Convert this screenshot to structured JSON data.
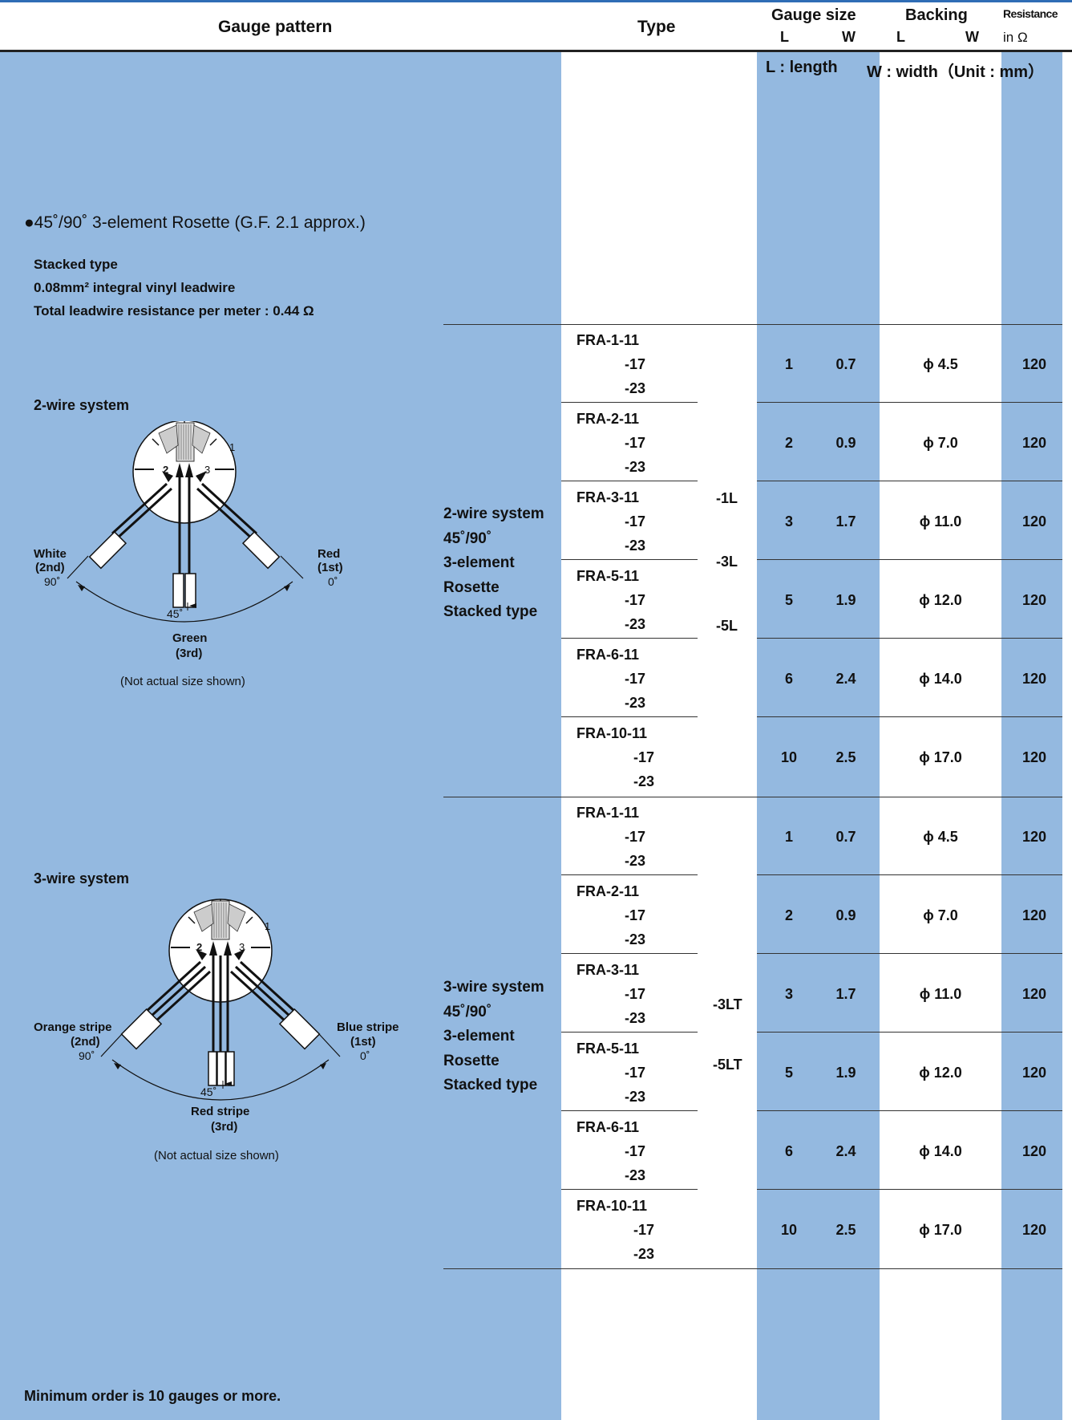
{
  "header": {
    "gauge_pattern": "Gauge pattern",
    "type": "Type",
    "gauge_size": "Gauge size",
    "gs_l": "L",
    "gs_w": "W",
    "backing": "Backing",
    "bk_l": "L",
    "bk_w": "W",
    "resistance": "Resistance",
    "resistance_unit": "in Ω"
  },
  "legend": {
    "l": "L : length",
    "w": "W : width（Unit : mm）"
  },
  "section": {
    "title": "●45˚/90˚ 3-element  Rosette (G.F. 2.1 approx.)",
    "desc1": "Stacked type",
    "desc2": "0.08mm² integral vinyl leadwire",
    "desc3": "Total leadwire resistance per meter : 0.44 Ω"
  },
  "diagram2": {
    "title": "2-wire system",
    "left_label": "White",
    "left_order": "(2nd)",
    "left_angle": "90˚",
    "right_label": "Red",
    "right_order": "(1st)",
    "right_angle": "0˚",
    "mid_angle": "45˚",
    "bottom_label": "Green",
    "bottom_order": "(3rd)",
    "n1": "1",
    "n2": "2",
    "n3": "3",
    "note": "(Not actual size shown)"
  },
  "diagram3": {
    "title": "3-wire system",
    "left_label": "Orange stripe",
    "left_order": "(2nd)",
    "left_angle": "90˚",
    "right_label": "Blue stripe",
    "right_order": "(1st)",
    "right_angle": "0˚",
    "mid_angle": "45˚",
    "bottom_label": "Red stripe",
    "bottom_order": "(3rd)",
    "n1": "1",
    "n2": "2",
    "n3": "3",
    "note": "(Not actual size shown)"
  },
  "group2": {
    "desc": [
      "2-wire system",
      "45˚/90˚",
      "3-element",
      "Rosette",
      "Stacked type"
    ],
    "suffixes": [
      "-1L",
      "-3L",
      "-5L"
    ]
  },
  "group3": {
    "desc": [
      "3-wire system",
      "45˚/90˚",
      "3-element",
      "Rosette",
      "Stacked type"
    ],
    "suffixes": [
      "-3LT",
      "-5LT"
    ]
  },
  "rows": [
    {
      "t1": "FRA-1-11",
      "t2": "-17",
      "t3": "-23",
      "gl": "1",
      "gw": "0.7",
      "bk": "ϕ 4.5",
      "r": "120"
    },
    {
      "t1": "FRA-2-11",
      "t2": "-17",
      "t3": "-23",
      "gl": "2",
      "gw": "0.9",
      "bk": "ϕ 7.0",
      "r": "120"
    },
    {
      "t1": "FRA-3-11",
      "t2": "-17",
      "t3": "-23",
      "gl": "3",
      "gw": "1.7",
      "bk": "ϕ 11.0",
      "r": "120"
    },
    {
      "t1": "FRA-5-11",
      "t2": "-17",
      "t3": "-23",
      "gl": "5",
      "gw": "1.9",
      "bk": "ϕ 12.0",
      "r": "120"
    },
    {
      "t1": "FRA-6-11",
      "t2": "-17",
      "t3": "-23",
      "gl": "6",
      "gw": "2.4",
      "bk": "ϕ 14.0",
      "r": "120"
    },
    {
      "t1": "FRA-10-11",
      "t2": "-17",
      "t3": "-23",
      "gl": "10",
      "gw": "2.5",
      "bk": "ϕ 17.0",
      "r": "120"
    },
    {
      "t1": "FRA-1-11",
      "t2": "-17",
      "t3": "-23",
      "gl": "1",
      "gw": "0.7",
      "bk": "ϕ 4.5",
      "r": "120"
    },
    {
      "t1": "FRA-2-11",
      "t2": "-17",
      "t3": "-23",
      "gl": "2",
      "gw": "0.9",
      "bk": "ϕ 7.0",
      "r": "120"
    },
    {
      "t1": "FRA-3-11",
      "t2": "-17",
      "t3": "-23",
      "gl": "3",
      "gw": "1.7",
      "bk": "ϕ 11.0",
      "r": "120"
    },
    {
      "t1": "FRA-5-11",
      "t2": "-17",
      "t3": "-23",
      "gl": "5",
      "gw": "1.9",
      "bk": "ϕ 12.0",
      "r": "120"
    },
    {
      "t1": "FRA-6-11",
      "t2": "-17",
      "t3": "-23",
      "gl": "6",
      "gw": "2.4",
      "bk": "ϕ 14.0",
      "r": "120"
    },
    {
      "t1": "FRA-10-11",
      "t2": "-17",
      "t3": "-23",
      "gl": "10",
      "gw": "2.5",
      "bk": "ϕ 17.0",
      "r": "120"
    }
  ],
  "footer": "Minimum order is 10 gauges or more."
}
